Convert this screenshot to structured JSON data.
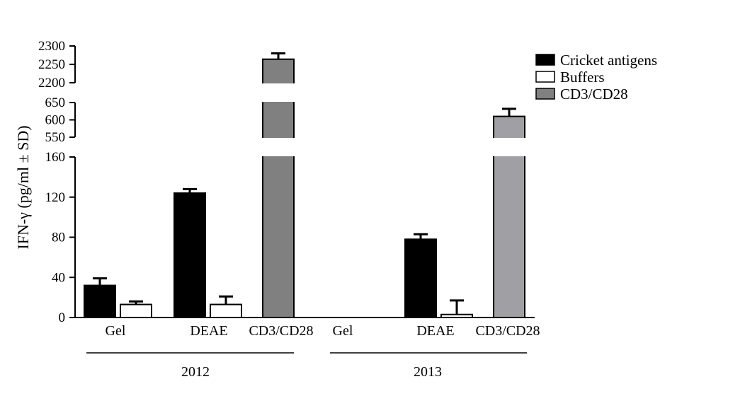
{
  "chart_data": {
    "type": "bar",
    "ylabel": "IFN-γ (pg/ml ± SD)",
    "y_segments": [
      {
        "range": [
          0,
          160
        ],
        "ticks": [
          0,
          40,
          80,
          120,
          160
        ]
      },
      {
        "range": [
          550,
          650
        ],
        "ticks": [
          550,
          600,
          650
        ]
      },
      {
        "range": [
          2200,
          2300
        ],
        "ticks": [
          2200,
          2250,
          2300
        ]
      }
    ],
    "groups": [
      {
        "label": "2012",
        "categories": [
          "Gel",
          "DEAE",
          "CD3/CD28"
        ],
        "bars": [
          {
            "series": "Cricket antigens",
            "category": "Gel",
            "value": 32,
            "sd": 7
          },
          {
            "series": "Buffers",
            "category": "Gel",
            "value": 13,
            "sd": 3
          },
          {
            "series": "Cricket antigens",
            "category": "DEAE",
            "value": 124,
            "sd": 4
          },
          {
            "series": "Buffers",
            "category": "DEAE",
            "value": 13,
            "sd": 8
          },
          {
            "series": "CD3/CD28",
            "category": "CD3/CD28",
            "value": 2264,
            "sd": 16
          }
        ]
      },
      {
        "label": "2013",
        "categories": [
          "Gel",
          "DEAE",
          "CD3/CD28"
        ],
        "bars": [
          {
            "series": "Cricket antigens",
            "category": "DEAE",
            "value": 78,
            "sd": 5
          },
          {
            "series": "Buffers",
            "category": "DEAE",
            "value": 3,
            "sd": 14
          },
          {
            "series": "CD3/CD28",
            "category": "CD3/CD28",
            "value": 610,
            "sd": 22
          }
        ]
      }
    ],
    "legend": {
      "position": "top-right",
      "items": [
        {
          "name": "Cricket antigens",
          "color": "#000000"
        },
        {
          "name": "Buffers",
          "color": "#ffffff"
        },
        {
          "name": "CD3/CD28",
          "color": "#808080"
        }
      ]
    },
    "colors": {
      "cd3_2013": "#a0a0a4"
    },
    "grid": false
  }
}
